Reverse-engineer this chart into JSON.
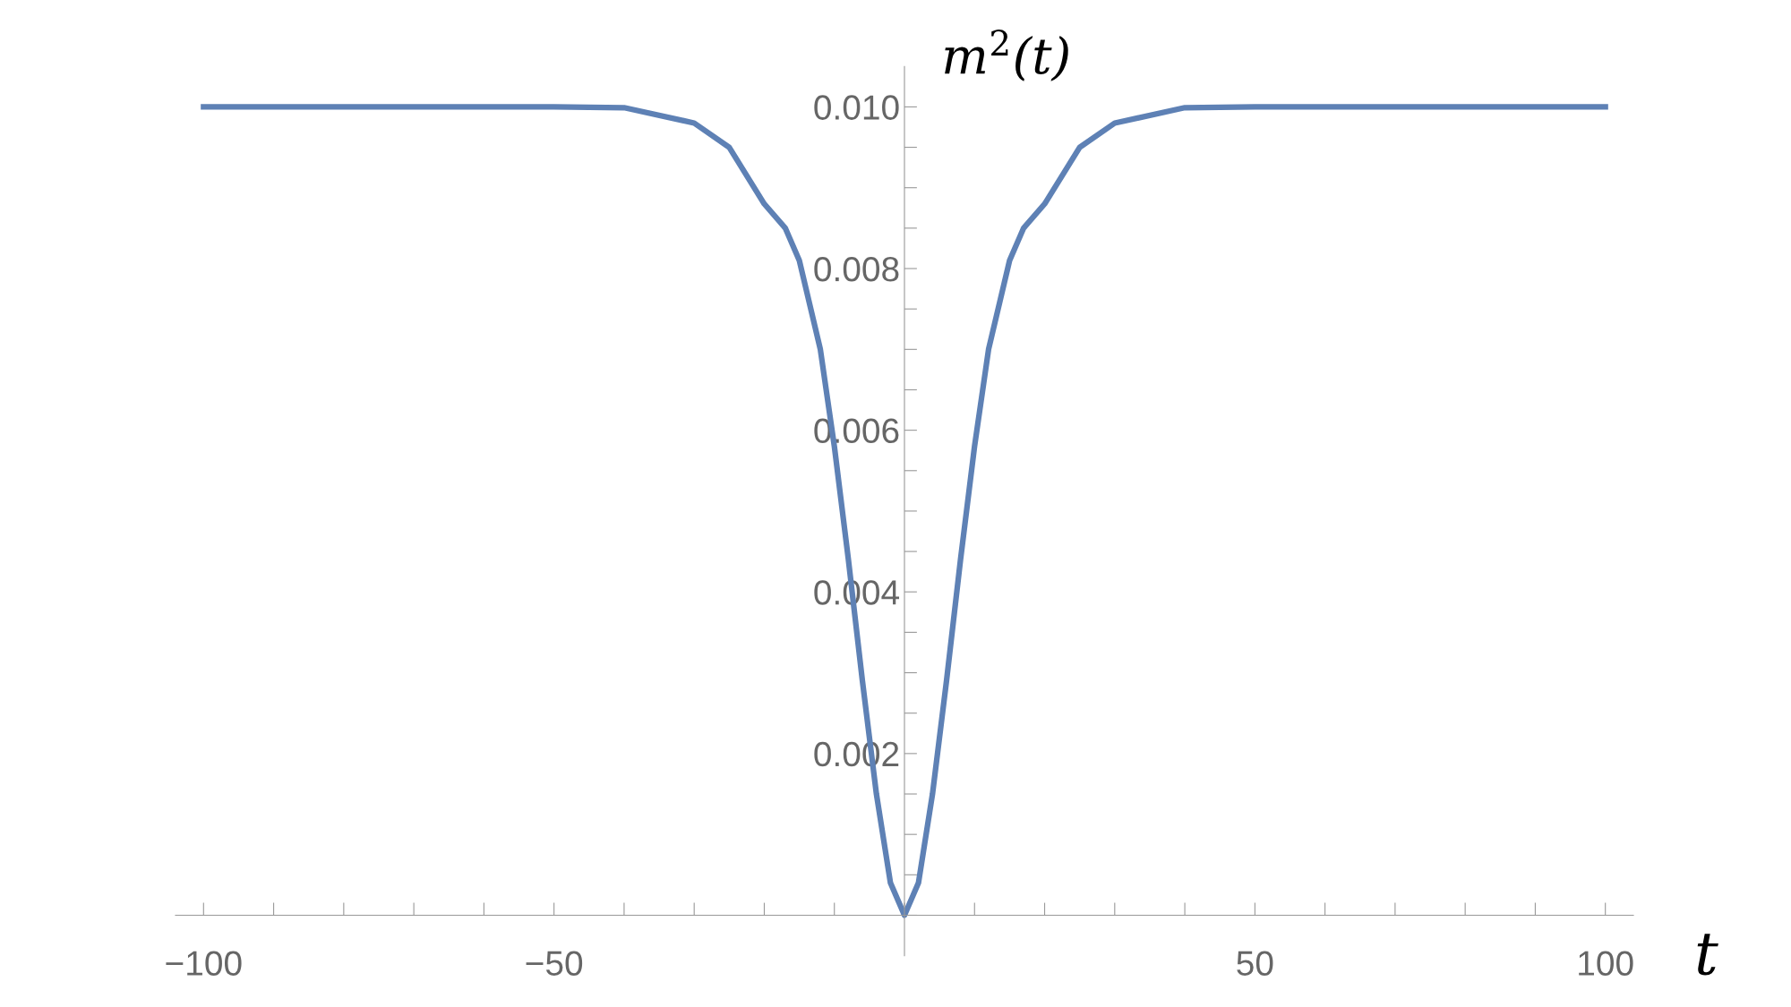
{
  "chart_data": {
    "type": "line",
    "xlabel": "t",
    "ylabel": "m$^{2}$(t)",
    "x": [
      -100,
      -50,
      -40,
      -30,
      -25,
      -20,
      -17,
      -15,
      -12,
      -10,
      -8,
      -6,
      -4,
      -2,
      0,
      2,
      4,
      6,
      8,
      10,
      12,
      15,
      17,
      20,
      25,
      30,
      40,
      50,
      100
    ],
    "series": [
      {
        "color": "#5e81b5",
        "values": [
          0.01,
          0.01,
          0.00999,
          0.0098,
          0.0095,
          0.0088,
          0.0085,
          0.0081,
          0.007,
          0.0058,
          0.0044,
          0.0029,
          0.0015,
          0.0004,
          0,
          0.0004,
          0.0015,
          0.0029,
          0.0044,
          0.0058,
          0.007,
          0.0081,
          0.0085,
          0.0088,
          0.0095,
          0.0098,
          0.00999,
          0.01,
          0.01
        ]
      }
    ],
    "xlim": [
      -104,
      104
    ],
    "ylim": [
      -0.0005,
      0.0105
    ],
    "xticks": [
      {
        "value": -100,
        "label": "−100"
      },
      {
        "value": -90,
        "label": null
      },
      {
        "value": -80,
        "label": null
      },
      {
        "value": -70,
        "label": null
      },
      {
        "value": -60,
        "label": null
      },
      {
        "value": -50,
        "label": "−50"
      },
      {
        "value": -40,
        "label": null
      },
      {
        "value": -30,
        "label": null
      },
      {
        "value": -20,
        "label": null
      },
      {
        "value": -10,
        "label": null
      },
      {
        "value": 0,
        "label": null
      },
      {
        "value": 10,
        "label": null
      },
      {
        "value": 20,
        "label": null
      },
      {
        "value": 30,
        "label": null
      },
      {
        "value": 40,
        "label": null
      },
      50,
      {
        "value": 60,
        "label": null
      },
      {
        "value": 70,
        "label": null
      },
      {
        "value": 80,
        "label": null
      },
      {
        "value": 90,
        "label": null
      },
      100
    ],
    "yticks": [
      {
        "value": 0,
        "label": null
      },
      {
        "value": 0.0005,
        "label": null
      },
      {
        "value": 0.001,
        "label": null
      },
      {
        "value": 0.0015,
        "label": null
      },
      0.002,
      {
        "value": 0.0025,
        "label": null
      },
      {
        "value": 0.003,
        "label": null
      },
      {
        "value": 0.0035,
        "label": null
      },
      0.004,
      {
        "value": 0.0045,
        "label": null
      },
      {
        "value": 0.005,
        "label": null
      },
      {
        "value": 0.0055,
        "label": null
      },
      0.006,
      {
        "value": 0.0065,
        "label": null
      },
      {
        "value": 0.007,
        "label": null
      },
      {
        "value": 0.0075,
        "label": null
      },
      0.008,
      {
        "value": 0.0085,
        "label": null
      },
      {
        "value": 0.009,
        "label": null
      },
      {
        "value": 0.0095,
        "label": null
      },
      {
        "value": 0.01,
        "label": "0.010"
      }
    ],
    "grid": false,
    "legend": false,
    "marker": "none",
    "line_style": "solid"
  }
}
